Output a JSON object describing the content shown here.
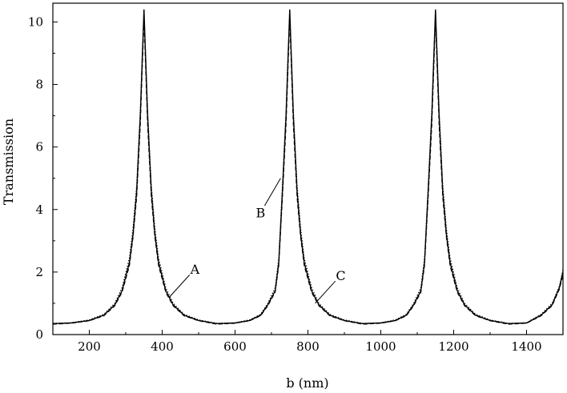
{
  "chart_data": {
    "type": "line",
    "title": "",
    "xlabel": "b (nm)",
    "ylabel": "Transmission",
    "xlim": [
      100,
      1500
    ],
    "ylim": [
      0,
      10.6
    ],
    "x_ticks": [
      200,
      400,
      600,
      800,
      1000,
      1200,
      1400
    ],
    "y_ticks": [
      0,
      2,
      4,
      6,
      8,
      10
    ],
    "grid": false,
    "legend": "none",
    "series": [
      {
        "style": "solid",
        "x": [
          100,
          150,
          200,
          240,
          270,
          290,
          310,
          320,
          330,
          340,
          345,
          350,
          355,
          360,
          370,
          380,
          390,
          410,
          430,
          460,
          500,
          550,
          600,
          640,
          670,
          690,
          710,
          720,
          730,
          740,
          745,
          750,
          755,
          760,
          770,
          780,
          790,
          810,
          830,
          860,
          900,
          950,
          1000,
          1040,
          1070,
          1090,
          1110,
          1120,
          1130,
          1140,
          1145,
          1150,
          1155,
          1160,
          1170,
          1180,
          1190,
          1210,
          1230,
          1260,
          1300,
          1350,
          1400,
          1440,
          1470,
          1490,
          1500
        ],
        "y": [
          0.35,
          0.37,
          0.45,
          0.62,
          0.95,
          1.4,
          2.3,
          3.2,
          4.6,
          7.0,
          8.7,
          10.4,
          8.7,
          7.0,
          4.6,
          3.2,
          2.3,
          1.4,
          0.95,
          0.62,
          0.45,
          0.35,
          0.37,
          0.45,
          0.62,
          0.95,
          1.4,
          2.3,
          4.6,
          7.0,
          8.7,
          10.4,
          8.7,
          7.0,
          4.6,
          3.2,
          2.3,
          1.4,
          0.95,
          0.62,
          0.45,
          0.35,
          0.37,
          0.45,
          0.62,
          0.95,
          1.4,
          2.3,
          4.6,
          7.0,
          8.7,
          10.4,
          8.7,
          7.0,
          4.6,
          3.2,
          2.3,
          1.4,
          0.95,
          0.62,
          0.45,
          0.35,
          0.37,
          0.62,
          0.95,
          1.5,
          2.0
        ]
      },
      {
        "style": "dashed",
        "x": [
          100,
          150,
          200,
          240,
          270,
          290,
          310,
          320,
          330,
          340,
          345,
          350,
          355,
          360,
          370,
          380,
          390,
          410,
          430,
          460,
          500,
          550,
          600,
          640,
          670,
          690,
          710,
          720,
          730,
          740,
          745,
          750,
          755,
          760,
          770,
          780,
          790,
          810,
          830,
          860,
          900,
          950,
          1000,
          1040,
          1070,
          1090,
          1110,
          1120,
          1130,
          1140,
          1145,
          1150,
          1155,
          1160,
          1170,
          1180,
          1190,
          1210,
          1230,
          1260,
          1300,
          1350,
          1400,
          1440,
          1470,
          1490,
          1500
        ],
        "y": [
          0.33,
          0.36,
          0.44,
          0.6,
          0.92,
          1.35,
          2.2,
          3.1,
          4.4,
          6.7,
          8.4,
          10.1,
          8.4,
          6.7,
          4.4,
          3.1,
          2.2,
          1.35,
          0.92,
          0.6,
          0.44,
          0.33,
          0.36,
          0.44,
          0.6,
          0.92,
          1.35,
          2.2,
          4.4,
          6.7,
          8.4,
          10.1,
          8.4,
          6.7,
          4.4,
          3.1,
          2.2,
          1.35,
          0.92,
          0.6,
          0.44,
          0.33,
          0.36,
          0.44,
          0.6,
          0.92,
          1.35,
          2.2,
          4.4,
          6.7,
          8.4,
          10.1,
          8.4,
          6.7,
          4.4,
          3.1,
          2.2,
          1.35,
          0.92,
          0.6,
          0.44,
          0.33,
          0.36,
          0.6,
          0.92,
          1.45,
          1.9
        ]
      },
      {
        "style": "dotted",
        "x": [
          100,
          150,
          200,
          240,
          270,
          290,
          310,
          320,
          330,
          340,
          345,
          350,
          355,
          360,
          370,
          380,
          390,
          410,
          430,
          460,
          500,
          550,
          600,
          640,
          670,
          690,
          710,
          720,
          730,
          740,
          745,
          750,
          755,
          760,
          770,
          780,
          790,
          810,
          830,
          860,
          900,
          950,
          1000,
          1040,
          1070,
          1090,
          1110,
          1120,
          1130,
          1140,
          1145,
          1150,
          1155,
          1160,
          1170,
          1180,
          1190,
          1210,
          1230,
          1260,
          1300,
          1350,
          1400,
          1440,
          1470,
          1490,
          1500
        ],
        "y": [
          0.36,
          0.38,
          0.47,
          0.65,
          1.0,
          1.5,
          2.45,
          3.4,
          4.8,
          7.2,
          8.9,
          10.2,
          8.9,
          7.2,
          4.8,
          3.4,
          2.45,
          1.5,
          1.0,
          0.65,
          0.47,
          0.36,
          0.38,
          0.47,
          0.65,
          1.0,
          1.5,
          2.45,
          4.8,
          7.2,
          8.9,
          10.2,
          8.9,
          7.2,
          4.8,
          3.4,
          2.45,
          1.5,
          1.0,
          0.65,
          0.47,
          0.36,
          0.38,
          0.47,
          0.65,
          1.0,
          1.5,
          2.45,
          4.8,
          7.2,
          8.9,
          10.2,
          8.9,
          7.2,
          4.8,
          3.4,
          2.45,
          1.5,
          1.0,
          0.65,
          0.47,
          0.36,
          0.38,
          0.65,
          1.0,
          1.55,
          2.1
        ]
      }
    ],
    "annotations": [
      {
        "text": "A",
        "x": 490,
        "y": 2.1,
        "point_x": 420,
        "point_y": 1.2
      },
      {
        "text": "B",
        "x": 670,
        "y": 3.9,
        "point_x": 725,
        "point_y": 5.0
      },
      {
        "text": "C",
        "x": 890,
        "y": 1.9,
        "point_x": 820,
        "point_y": 1.0
      }
    ],
    "colors": {
      "line": "#000000",
      "axis": "#000000",
      "background": "#ffffff"
    }
  }
}
